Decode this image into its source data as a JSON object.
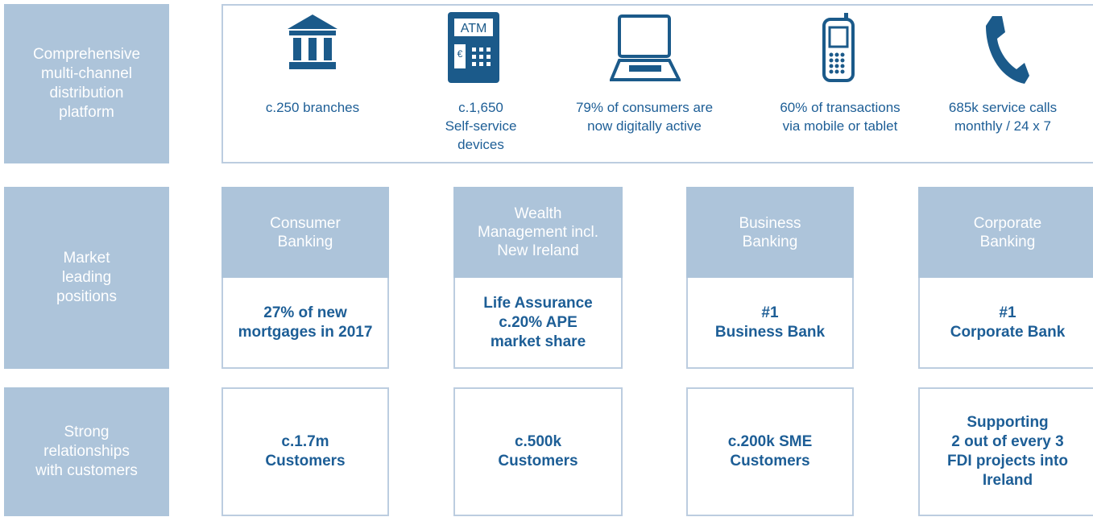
{
  "platform": {
    "label": [
      "Comprehensive",
      "multi-channel",
      "distribution",
      "platform"
    ],
    "atm_icon_label": "ATM",
    "atm_icon_currency": "€",
    "channels": [
      [
        "c.250 branches"
      ],
      [
        "c.1,650",
        "Self-service",
        "devices"
      ],
      [
        "79% of consumers are",
        "now digitally active"
      ],
      [
        "60% of transactions",
        "via mobile or tablet"
      ],
      [
        "685k service calls",
        "monthly / 24 x 7"
      ]
    ]
  },
  "positions": {
    "label": [
      "Market",
      "leading",
      "positions"
    ],
    "segments": [
      {
        "name": [
          "Consumer",
          "Banking"
        ],
        "highlight": [
          "27% of new",
          "mortgages in 2017"
        ]
      },
      {
        "name": [
          "Wealth",
          "Management incl.",
          "New Ireland"
        ],
        "highlight": [
          "Life Assurance",
          "c.20% APE",
          "market share"
        ]
      },
      {
        "name": [
          "Business",
          "Banking"
        ],
        "highlight": [
          "#1",
          "Business Bank"
        ]
      },
      {
        "name": [
          "Corporate",
          "Banking"
        ],
        "highlight": [
          "#1",
          "Corporate Bank"
        ]
      }
    ]
  },
  "relationships": {
    "label": [
      "Strong",
      "relationships",
      "with customers"
    ],
    "customers": [
      [
        "c.1.7m",
        "Customers"
      ],
      [
        "c.500k",
        "Customers"
      ],
      [
        "c.200k SME",
        "Customers"
      ],
      [
        "Supporting",
        "2 out of every 3",
        "FDI projects into",
        "Ireland"
      ]
    ]
  }
}
